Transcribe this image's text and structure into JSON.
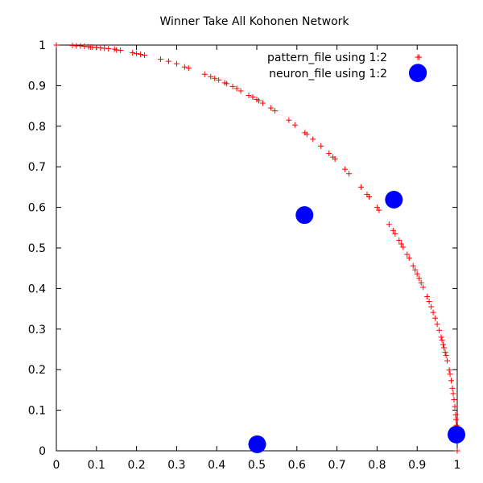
{
  "chart_data": {
    "type": "scatter",
    "title": "Winner Take All Kohonen Network",
    "xlabel": "",
    "ylabel": "",
    "xlim": [
      0,
      1
    ],
    "ylim": [
      0,
      1
    ],
    "x_ticks": [
      "0",
      "0.1",
      "0.2",
      "0.3",
      "0.4",
      "0.5",
      "0.6",
      "0.7",
      "0.8",
      "0.9",
      "1"
    ],
    "y_ticks": [
      "0",
      "0.1",
      "0.2",
      "0.3",
      "0.4",
      "0.5",
      "0.6",
      "0.7",
      "0.8",
      "0.9",
      "1"
    ],
    "grid": false,
    "legend_position": "top-right",
    "series": [
      {
        "name": "pattern_file using 1:2",
        "marker": "plus",
        "color": "#ff0000",
        "points": [
          [
            0.0,
            1.0
          ],
          [
            0.04,
            0.999
          ],
          [
            0.05,
            0.998
          ],
          [
            0.06,
            0.998
          ],
          [
            0.07,
            0.997
          ],
          [
            0.08,
            0.996
          ],
          [
            0.085,
            0.995
          ],
          [
            0.09,
            0.995
          ],
          [
            0.1,
            0.994
          ],
          [
            0.11,
            0.993
          ],
          [
            0.12,
            0.992
          ],
          [
            0.13,
            0.991
          ],
          [
            0.145,
            0.99
          ],
          [
            0.15,
            0.988
          ],
          [
            0.16,
            0.987
          ],
          [
            0.19,
            0.981
          ],
          [
            0.2,
            0.979
          ],
          [
            0.21,
            0.977
          ],
          [
            0.22,
            0.975
          ],
          [
            0.26,
            0.965
          ],
          [
            0.28,
            0.96
          ],
          [
            0.3,
            0.954
          ],
          [
            0.32,
            0.946
          ],
          [
            0.33,
            0.943
          ],
          [
            0.37,
            0.928
          ],
          [
            0.385,
            0.922
          ],
          [
            0.395,
            0.918
          ],
          [
            0.405,
            0.914
          ],
          [
            0.42,
            0.907
          ],
          [
            0.425,
            0.905
          ],
          [
            0.44,
            0.898
          ],
          [
            0.45,
            0.893
          ],
          [
            0.46,
            0.887
          ],
          [
            0.48,
            0.876
          ],
          [
            0.49,
            0.872
          ],
          [
            0.5,
            0.866
          ],
          [
            0.505,
            0.863
          ],
          [
            0.515,
            0.857
          ],
          [
            0.535,
            0.845
          ],
          [
            0.545,
            0.838
          ],
          [
            0.58,
            0.815
          ],
          [
            0.595,
            0.803
          ],
          [
            0.62,
            0.784
          ],
          [
            0.625,
            0.78
          ],
          [
            0.64,
            0.768
          ],
          [
            0.66,
            0.751
          ],
          [
            0.68,
            0.733
          ],
          [
            0.69,
            0.724
          ],
          [
            0.695,
            0.719
          ],
          [
            0.72,
            0.694
          ],
          [
            0.73,
            0.683
          ],
          [
            0.76,
            0.65
          ],
          [
            0.775,
            0.632
          ],
          [
            0.78,
            0.626
          ],
          [
            0.8,
            0.6
          ],
          [
            0.805,
            0.593
          ],
          [
            0.83,
            0.558
          ],
          [
            0.84,
            0.543
          ],
          [
            0.845,
            0.535
          ],
          [
            0.855,
            0.519
          ],
          [
            0.86,
            0.51
          ],
          [
            0.865,
            0.502
          ],
          [
            0.875,
            0.484
          ],
          [
            0.88,
            0.475
          ],
          [
            0.89,
            0.456
          ],
          [
            0.895,
            0.446
          ],
          [
            0.9,
            0.436
          ],
          [
            0.905,
            0.425
          ],
          [
            0.91,
            0.414
          ],
          [
            0.915,
            0.403
          ],
          [
            0.925,
            0.38
          ],
          [
            0.93,
            0.368
          ],
          [
            0.935,
            0.355
          ],
          [
            0.94,
            0.341
          ],
          [
            0.945,
            0.327
          ],
          [
            0.95,
            0.312
          ],
          [
            0.955,
            0.297
          ],
          [
            0.96,
            0.28
          ],
          [
            0.962,
            0.273
          ],
          [
            0.965,
            0.262
          ],
          [
            0.967,
            0.254
          ],
          [
            0.97,
            0.243
          ],
          [
            0.972,
            0.235
          ],
          [
            0.975,
            0.222
          ],
          [
            0.98,
            0.199
          ],
          [
            0.982,
            0.189
          ],
          [
            0.985,
            0.173
          ],
          [
            0.988,
            0.154
          ],
          [
            0.99,
            0.141
          ],
          [
            0.992,
            0.126
          ],
          [
            0.994,
            0.109
          ],
          [
            0.996,
            0.089
          ],
          [
            0.997,
            0.077
          ],
          [
            0.998,
            0.063
          ],
          [
            0.999,
            0.045
          ],
          [
            1.0,
            0.0
          ],
          [
            0.905,
            0.97
          ]
        ]
      },
      {
        "name": "neuron_file using 1:2",
        "marker": "circle",
        "color": "#0000ff",
        "points": [
          [
            0.902,
            0.932
          ],
          [
            0.842,
            0.619
          ],
          [
            0.619,
            0.581
          ],
          [
            0.501,
            0.016
          ],
          [
            0.998,
            0.04
          ]
        ]
      }
    ]
  }
}
